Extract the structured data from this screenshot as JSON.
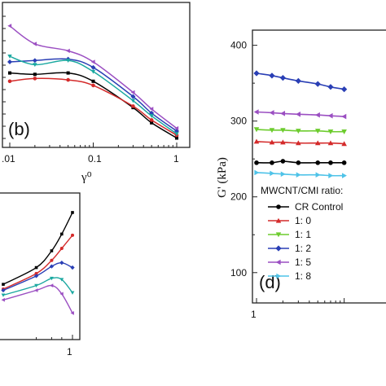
{
  "chart_data": [
    {
      "panel_label": "(b)",
      "type": "line",
      "xlabel": "γ⁰",
      "xscale": "log",
      "xlim": [
        0.01,
        1
      ],
      "x_ticks": [
        ".01",
        "0.1",
        "1"
      ],
      "ylim": [
        0,
        1
      ],
      "grid": false,
      "series": [
        {
          "color": "#000000",
          "marker": "square",
          "x": [
            0.01,
            0.02,
            0.05,
            0.1,
            0.3,
            0.5,
            1.0
          ],
          "y": [
            0.52,
            0.51,
            0.52,
            0.46,
            0.27,
            0.16,
            0.05
          ]
        },
        {
          "color": "#d42b2b",
          "marker": "circle",
          "x": [
            0.01,
            0.02,
            0.05,
            0.1,
            0.3,
            0.5,
            1.0
          ],
          "y": [
            0.46,
            0.48,
            0.47,
            0.43,
            0.28,
            0.18,
            0.07
          ]
        },
        {
          "color": "#2a3fb5",
          "marker": "diamond",
          "x": [
            0.01,
            0.02,
            0.05,
            0.1,
            0.3,
            0.5,
            1.0
          ],
          "y": [
            0.6,
            0.61,
            0.62,
            0.56,
            0.35,
            0.23,
            0.1
          ]
        },
        {
          "color": "#9b4fc2",
          "marker": "triangle-left",
          "x": [
            0.01,
            0.02,
            0.05,
            0.1,
            0.3,
            0.5,
            1.0
          ],
          "y": [
            0.86,
            0.73,
            0.68,
            0.6,
            0.38,
            0.26,
            0.12
          ]
        },
        {
          "color": "#1aa8a0",
          "marker": "triangle-down",
          "x": [
            0.01,
            0.02,
            0.05,
            0.1,
            0.3,
            0.5,
            1.0
          ],
          "y": [
            0.64,
            0.58,
            0.61,
            0.53,
            0.32,
            0.21,
            0.08
          ]
        }
      ]
    },
    {
      "panel_label": "",
      "type": "line",
      "xscale": "log",
      "x_ticks": [
        "1"
      ],
      "grid": false,
      "series": [
        {
          "color": "#000000",
          "marker": "square",
          "x": [
            0.1,
            0.3,
            0.5,
            0.7,
            1.0
          ],
          "y": [
            0.38,
            0.52,
            0.66,
            0.8,
            0.98
          ]
        },
        {
          "color": "#d42b2b",
          "marker": "circle",
          "x": [
            0.1,
            0.3,
            0.5,
            0.7,
            1.0
          ],
          "y": [
            0.34,
            0.47,
            0.58,
            0.68,
            0.79
          ]
        },
        {
          "color": "#2a3fb5",
          "marker": "diamond",
          "x": [
            0.1,
            0.3,
            0.5,
            0.7,
            1.0
          ],
          "y": [
            0.33,
            0.45,
            0.53,
            0.56,
            0.52
          ]
        },
        {
          "color": "#1aa8a0",
          "marker": "triangle-down",
          "x": [
            0.1,
            0.3,
            0.5,
            0.7,
            1.0
          ],
          "y": [
            0.29,
            0.37,
            0.43,
            0.42,
            0.31
          ]
        },
        {
          "color": "#9b4fc2",
          "marker": "triangle-left",
          "x": [
            0.1,
            0.3,
            0.5,
            0.7,
            1.0
          ],
          "y": [
            0.25,
            0.33,
            0.37,
            0.3,
            0.14
          ]
        }
      ]
    },
    {
      "panel_label": "(d)",
      "type": "line",
      "ylabel": "G' (kPa)",
      "ylim": [
        60,
        420
      ],
      "y_ticks": [
        100,
        200,
        300,
        400
      ],
      "xscale": "log",
      "x_ticks": [
        "1"
      ],
      "grid": false,
      "legend": {
        "title": "MWCNT/CMI ratio:",
        "placement": "bottom-left",
        "entries": [
          "CR Control",
          "1: 0",
          "1: 1",
          "1: 2",
          "1: 5",
          "1: 8"
        ]
      },
      "series": [
        {
          "name": "CR Control",
          "color": "#000000",
          "marker": "circle",
          "x": [
            1.0,
            1.5,
            2.0,
            3.0,
            5.0,
            7.0,
            10.0
          ],
          "y": [
            245,
            245,
            247,
            245,
            245,
            245,
            245
          ]
        },
        {
          "name": "1: 0",
          "color": "#d42b2b",
          "marker": "triangle-up",
          "x": [
            1.0,
            1.5,
            2.0,
            3.0,
            5.0,
            7.0,
            10.0
          ],
          "y": [
            273,
            272,
            272,
            271,
            271,
            271,
            270
          ]
        },
        {
          "name": "1: 1",
          "color": "#6dcc2e",
          "marker": "triangle-down",
          "x": [
            1.0,
            1.5,
            2.0,
            3.0,
            5.0,
            7.0,
            10.0
          ],
          "y": [
            289,
            288,
            288,
            287,
            287,
            286,
            286
          ]
        },
        {
          "name": "1: 2",
          "color": "#2a3fb5",
          "marker": "diamond",
          "x": [
            1.0,
            1.5,
            2.0,
            3.0,
            5.0,
            7.0,
            10.0
          ],
          "y": [
            363,
            360,
            357,
            353,
            349,
            345,
            342
          ]
        },
        {
          "name": "1: 5",
          "color": "#9b4fc2",
          "marker": "triangle-left",
          "x": [
            1.0,
            1.5,
            2.0,
            3.0,
            5.0,
            7.0,
            10.0
          ],
          "y": [
            312,
            311,
            310,
            309,
            308,
            307,
            306
          ]
        },
        {
          "name": "1: 8",
          "color": "#4fc3e8",
          "marker": "triangle-right",
          "x": [
            1.0,
            1.5,
            2.0,
            3.0,
            5.0,
            7.0,
            10.0
          ],
          "y": [
            232,
            231,
            230,
            229,
            229,
            228,
            228
          ]
        }
      ]
    }
  ]
}
